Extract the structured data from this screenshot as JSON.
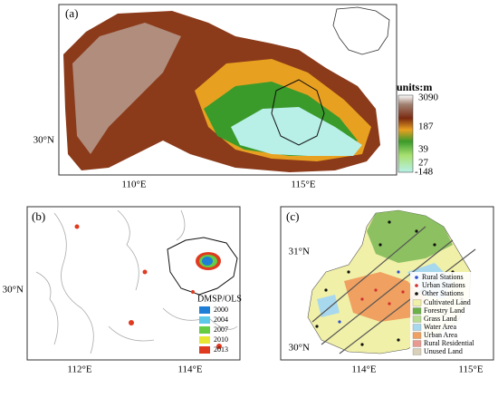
{
  "panels": [
    {
      "label": "(a)",
      "units": "units:m",
      "colorbar": [
        "3090",
        "187",
        "39",
        "27",
        "-148"
      ],
      "lat": [
        "30°N"
      ],
      "lon": [
        "110°E",
        "115°E"
      ]
    },
    {
      "label": "(b)",
      "lat": [
        "30°N"
      ],
      "lon": [
        "112°E",
        "114°E"
      ],
      "legend_title": "DMSP/OLS",
      "legend": [
        {
          "name": "2000",
          "color": "#1f7fd6"
        },
        {
          "name": "2004",
          "color": "#5ec8e8"
        },
        {
          "name": "2007",
          "color": "#66cc44"
        },
        {
          "name": "2010",
          "color": "#e6e633"
        },
        {
          "name": "2013",
          "color": "#e03a20"
        }
      ]
    },
    {
      "label": "(c)",
      "lat": [
        "31°N",
        "30°N"
      ],
      "lon": [
        "114°E",
        "115°E"
      ],
      "stations": [
        {
          "name": "Rural Stations",
          "color": "#3050d0"
        },
        {
          "name": "Urban Stations",
          "color": "#d03030"
        },
        {
          "name": "Other Stations",
          "color": "#111111"
        }
      ],
      "landuse": [
        {
          "name": "Cultivated Land",
          "color": "#f0f0a8"
        },
        {
          "name": "Forestry Land",
          "color": "#6cb04a"
        },
        {
          "name": "Grass Land",
          "color": "#b8dc90"
        },
        {
          "name": "Water Area",
          "color": "#a8d8ee"
        },
        {
          "name": "Urban Area",
          "color": "#f0a060"
        },
        {
          "name": "Rural Residential",
          "color": "#e89a90"
        },
        {
          "name": "Unused Land",
          "color": "#d8d0b8"
        }
      ]
    }
  ]
}
